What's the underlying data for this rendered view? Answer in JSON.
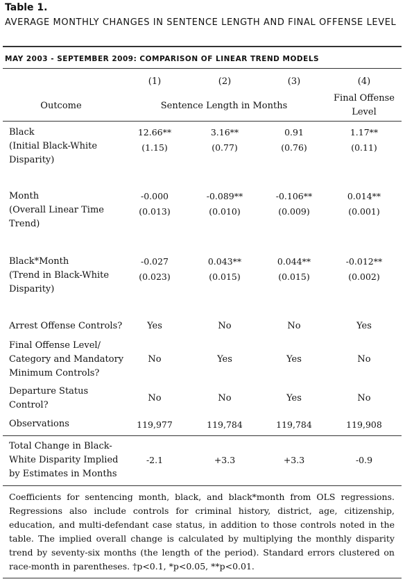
{
  "table_label": "Table 1.",
  "title": "AVERAGE MONTHLY CHANGES IN SENTENCE LENGTH AND FINAL OFFENSE LEVEL",
  "subtitle": "MAY 2003 - SEPTEMBER 2009: COMPARISON OF LINEAR TREND MODELS",
  "column_numbers": [
    "(1)",
    "(2)",
    "(3)",
    "(4)"
  ],
  "header": {
    "outcome": "Outcome",
    "sentence_length": "Sentence Length in Months",
    "final_offense_line1": "Final Offense",
    "final_offense_line2": "Level"
  },
  "rows": [
    {
      "label": [
        "Black",
        "(Initial Black-White",
        "Disparity)"
      ],
      "coef": [
        "12.66**",
        "3.16**",
        "0.91",
        "1.17**"
      ],
      "se": [
        "(1.15)",
        "(0.77)",
        "(0.76)",
        "(0.11)"
      ]
    },
    {
      "label": [
        "Month",
        "(Overall Linear Time",
        "Trend)"
      ],
      "coef": [
        "-0.000",
        "-0.089**",
        "-0.106**",
        "0.014**"
      ],
      "se": [
        "(0.013)",
        "(0.010)",
        "(0.009)",
        "(0.001)"
      ]
    },
    {
      "label": [
        "Black*Month",
        "(Trend in Black-White",
        "Disparity)"
      ],
      "coef": [
        "-0.027",
        "0.043**",
        "0.044**",
        "-0.012**"
      ],
      "se": [
        "(0.023)",
        "(0.015)",
        "(0.015)",
        "(0.002)"
      ]
    }
  ],
  "controls": [
    {
      "label": [
        "Arrest Offense Controls?"
      ],
      "values": [
        "Yes",
        "No",
        "No",
        "Yes"
      ]
    },
    {
      "label": [
        "Final Offense Level/",
        "Category and Mandatory",
        "Minimum Controls?"
      ],
      "values": [
        "No",
        "Yes",
        "Yes",
        "No"
      ]
    },
    {
      "label": [
        "Departure Status",
        "Control?"
      ],
      "values": [
        "No",
        "No",
        "Yes",
        "No"
      ]
    }
  ],
  "observations": {
    "label": "Observations",
    "values": [
      "119,977",
      "119,784",
      "119,784",
      "119,908"
    ]
  },
  "total_change": {
    "label": [
      "Total Change in Black-",
      "White Disparity Implied",
      "by Estimates in Months"
    ],
    "values": [
      "-2.1",
      "+3.3",
      "+3.3",
      "-0.9"
    ]
  },
  "note": "Coefficients for sentencing month, black, and black*month from OLS regressions. Regressions also include controls for criminal history, district, age, citizenship, education, and multi-defendant case status, in addition to those controls noted in the table. The implied overall change is calculated by multiplying the monthly disparity trend by seventy-six months (the length of the period). Standard errors clustered on race-month in parentheses. †p<0.1, *p<0.05, **p<0.01."
}
